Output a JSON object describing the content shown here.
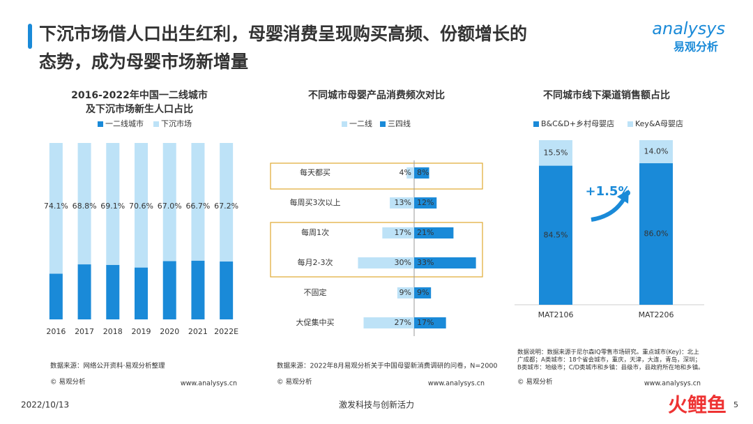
{
  "header": {
    "title_lines": [
      "下沉市场借人口出生红利，母婴消费呈现购买高频、份额增长的",
      "态势，成为母婴市场新增量"
    ],
    "logo": "analysys",
    "logo_cn": "易观分析"
  },
  "chart_data": [
    {
      "type": "stacked_bar",
      "title_lines": [
        "2016-2022年中国一二线城市",
        "及下沉市场新生人口占比"
      ],
      "categories": [
        "2016",
        "2017",
        "2018",
        "2019",
        "2020",
        "2021",
        "2022E"
      ],
      "ylim": [
        0,
        100
      ],
      "series": [
        {
          "name": "一二线城市",
          "color": "#1a8ad8",
          "values": [
            25.9,
            31.2,
            30.9,
            29.4,
            33.0,
            33.3,
            32.8
          ]
        },
        {
          "name": "下沉市场",
          "color": "#bde2f7",
          "values": [
            74.1,
            68.8,
            69.1,
            70.6,
            67.0,
            66.7,
            67.2
          ],
          "value_labels": [
            "74.1%",
            "68.8%",
            "69.1%",
            "70.6%",
            "67.0%",
            "66.7%",
            "67.2%"
          ]
        }
      ],
      "source": [
        "数据来源：网络公开资料·易观分析整理"
      ],
      "copyright": "© 易观分析",
      "website": "www.analysys.cn"
    },
    {
      "type": "diverging_bar",
      "title_lines": [
        "不同城市母婴产品消费频次对比"
      ],
      "categories": [
        "每天都买",
        "每周买3次以上",
        "每周1次",
        "每月2-3次",
        "不固定",
        "大促集中买"
      ],
      "xlim": [
        0,
        35
      ],
      "series": [
        {
          "name": "一二线",
          "color": "#bde2f7",
          "values": [
            4,
            13,
            17,
            30,
            9,
            27
          ],
          "value_labels": [
            "4%",
            "13%",
            "17%",
            "30%",
            "9%",
            "27%"
          ]
        },
        {
          "name": "三四线",
          "color": "#1a8ad8",
          "values": [
            8,
            12,
            21,
            33,
            9,
            17
          ],
          "value_labels": [
            "8%",
            "12%",
            "21%",
            "33%",
            "9%",
            "17%"
          ]
        }
      ],
      "source": [
        "数据来源：2022年8月易观分析关于中国母婴新消费调研的问卷，N=2000"
      ],
      "copyright": "© 易观分析",
      "website": "www.analysys.cn"
    },
    {
      "type": "stacked_bar",
      "title_lines": [
        "不同城市线下渠道销售额占比"
      ],
      "categories": [
        "MAT2106",
        "MAT2206"
      ],
      "ylim": [
        0,
        100
      ],
      "series": [
        {
          "name": "B&C&D+乡村母婴店",
          "color": "#1a8ad8",
          "values": [
            84.5,
            86.0
          ],
          "value_labels": [
            "84.5%",
            "86.0%"
          ]
        },
        {
          "name": "Key&A母婴店",
          "color": "#bde2f7",
          "values": [
            15.5,
            14.0
          ],
          "value_labels": [
            "15.5%",
            "14.0%"
          ]
        }
      ],
      "annotation": "+1.5%",
      "source": [
        "数据说明：数据来源于尼尔森IQ零售市场研究。重点城市(Key)：北上",
        "广成都；A类城市：18个省会城市，重庆，天津，大连，青岛，深圳；",
        "B类城市：地级市；C/D类城市和乡镇：县级市，县政府所在地和乡镇。"
      ],
      "copyright": "© 易观分析",
      "website": "www.analysys.cn"
    }
  ],
  "footer": {
    "date": "2022/10/13",
    "slogan": "激发科技与创新活力",
    "page": "5",
    "brand": "火鲤鱼"
  }
}
